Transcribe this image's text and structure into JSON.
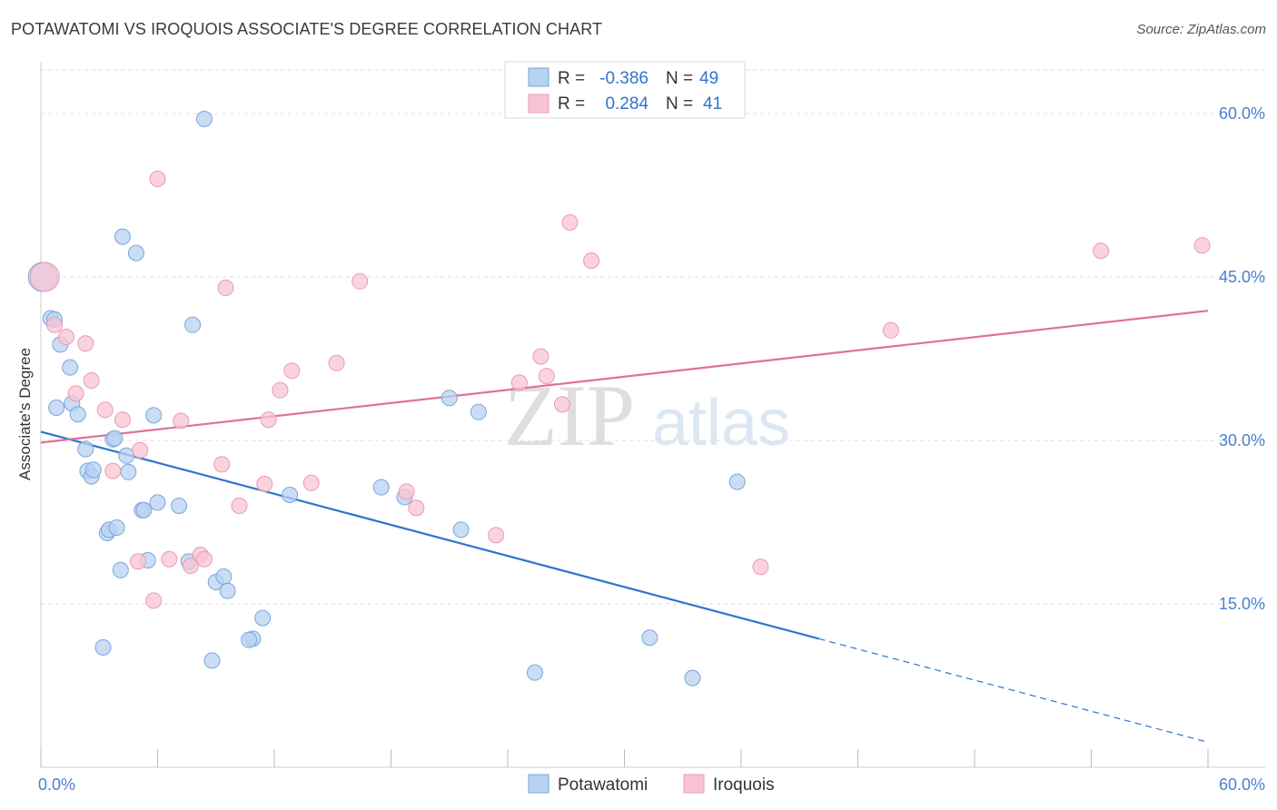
{
  "title": "POTAWATOMI VS IROQUOIS ASSOCIATE'S DEGREE CORRELATION CHART",
  "source": "Source: ZipAtlas.com",
  "watermark": {
    "zip": "ZIP",
    "atlas": "atlas"
  },
  "colors": {
    "blue_fill": "#b8d2f2",
    "blue_stroke": "#7aa6dc",
    "blue_line": "#2e74d0",
    "pink_fill": "#f8c4d4",
    "pink_stroke": "#eb9ab3",
    "pink_line": "#e0709a",
    "tick_label": "#4a7fcf",
    "grid": "#dddddd"
  },
  "legend_top": [
    {
      "series": "Potawatomi",
      "r_label": "R =",
      "r_value": "-0.386",
      "n_label": "N =",
      "n_value": "49"
    },
    {
      "series": "Iroquois",
      "r_label": "R =",
      "r_value": "0.284",
      "n_label": "N =",
      "n_value": "41"
    }
  ],
  "chart_data": {
    "type": "scatter",
    "title": "POTAWATOMI VS IROQUOIS ASSOCIATE'S DEGREE CORRELATION CHART",
    "xlabel": "",
    "ylabel": "Associate's Degree",
    "xlim": [
      0,
      60
    ],
    "ylim": [
      0,
      64
    ],
    "x_tick_labels": [
      "0.0%",
      "60.0%"
    ],
    "y_ticks": [
      15,
      30,
      45,
      60
    ],
    "y_tick_labels": [
      "15.0%",
      "30.0%",
      "45.0%",
      "60.0%"
    ],
    "legend": [
      "Potawatomi",
      "Iroquois"
    ],
    "series": [
      {
        "name": "Potawatomi",
        "color": "#7aa6dc",
        "trend": {
          "x0": 0,
          "y0": 30.8,
          "x1": 40,
          "y1": 11.8,
          "dash_to_x": 60,
          "dash_to_y": 2.3
        },
        "points": [
          [
            0.1,
            45.0
          ],
          [
            0.5,
            41.2
          ],
          [
            0.7,
            41.1
          ],
          [
            1.0,
            38.8
          ],
          [
            0.8,
            33.0
          ],
          [
            1.5,
            36.7
          ],
          [
            1.6,
            33.4
          ],
          [
            1.9,
            32.4
          ],
          [
            2.3,
            29.2
          ],
          [
            2.4,
            27.2
          ],
          [
            2.6,
            26.7
          ],
          [
            2.7,
            27.3
          ],
          [
            3.4,
            21.5
          ],
          [
            3.5,
            21.8
          ],
          [
            3.9,
            22.0
          ],
          [
            3.7,
            30.1
          ],
          [
            3.8,
            30.2
          ],
          [
            4.4,
            28.6
          ],
          [
            4.5,
            27.1
          ],
          [
            5.2,
            23.6
          ],
          [
            5.3,
            23.6
          ],
          [
            5.5,
            19.0
          ],
          [
            6.0,
            24.3
          ],
          [
            5.8,
            32.3
          ],
          [
            4.1,
            18.1
          ],
          [
            3.2,
            11.0
          ],
          [
            7.1,
            24.0
          ],
          [
            7.6,
            18.9
          ],
          [
            7.8,
            40.6
          ],
          [
            9.0,
            17.0
          ],
          [
            9.4,
            17.5
          ],
          [
            9.6,
            16.2
          ],
          [
            8.8,
            9.8
          ],
          [
            10.9,
            11.8
          ],
          [
            10.7,
            11.7
          ],
          [
            11.4,
            13.7
          ],
          [
            12.8,
            25.0
          ],
          [
            17.5,
            25.7
          ],
          [
            18.7,
            24.8
          ],
          [
            21.6,
            21.8
          ],
          [
            21.0,
            33.9
          ],
          [
            22.5,
            32.6
          ],
          [
            25.4,
            8.7
          ],
          [
            31.3,
            11.9
          ],
          [
            33.5,
            8.2
          ],
          [
            35.8,
            26.2
          ],
          [
            8.4,
            59.5
          ],
          [
            4.2,
            48.7
          ],
          [
            4.9,
            47.2
          ]
        ]
      },
      {
        "name": "Iroquois",
        "color": "#eb9ab3",
        "trend": {
          "x0": 0,
          "y0": 29.8,
          "x1": 60,
          "y1": 41.9
        },
        "points": [
          [
            0.2,
            45.0
          ],
          [
            0.7,
            40.6
          ],
          [
            1.3,
            39.5
          ],
          [
            1.8,
            34.3
          ],
          [
            2.3,
            38.9
          ],
          [
            2.6,
            35.5
          ],
          [
            3.3,
            32.8
          ],
          [
            3.7,
            27.2
          ],
          [
            4.2,
            31.9
          ],
          [
            5.0,
            18.9
          ],
          [
            5.1,
            29.1
          ],
          [
            5.8,
            15.3
          ],
          [
            6.0,
            54.0
          ],
          [
            6.6,
            19.1
          ],
          [
            7.2,
            31.8
          ],
          [
            7.7,
            18.5
          ],
          [
            8.2,
            19.5
          ],
          [
            8.4,
            19.1
          ],
          [
            9.3,
            27.8
          ],
          [
            9.5,
            44.0
          ],
          [
            10.2,
            24.0
          ],
          [
            11.5,
            26.0
          ],
          [
            11.7,
            31.9
          ],
          [
            12.3,
            34.6
          ],
          [
            12.9,
            36.4
          ],
          [
            13.9,
            26.1
          ],
          [
            15.2,
            37.1
          ],
          [
            16.4,
            44.6
          ],
          [
            18.8,
            25.3
          ],
          [
            19.3,
            23.8
          ],
          [
            23.4,
            21.3
          ],
          [
            24.6,
            35.3
          ],
          [
            25.7,
            37.7
          ],
          [
            26.0,
            35.9
          ],
          [
            26.8,
            33.3
          ],
          [
            27.2,
            50.0
          ],
          [
            28.3,
            46.5
          ],
          [
            37.0,
            18.4
          ],
          [
            43.7,
            40.1
          ],
          [
            54.5,
            47.4
          ],
          [
            59.7,
            47.9
          ]
        ]
      }
    ]
  }
}
